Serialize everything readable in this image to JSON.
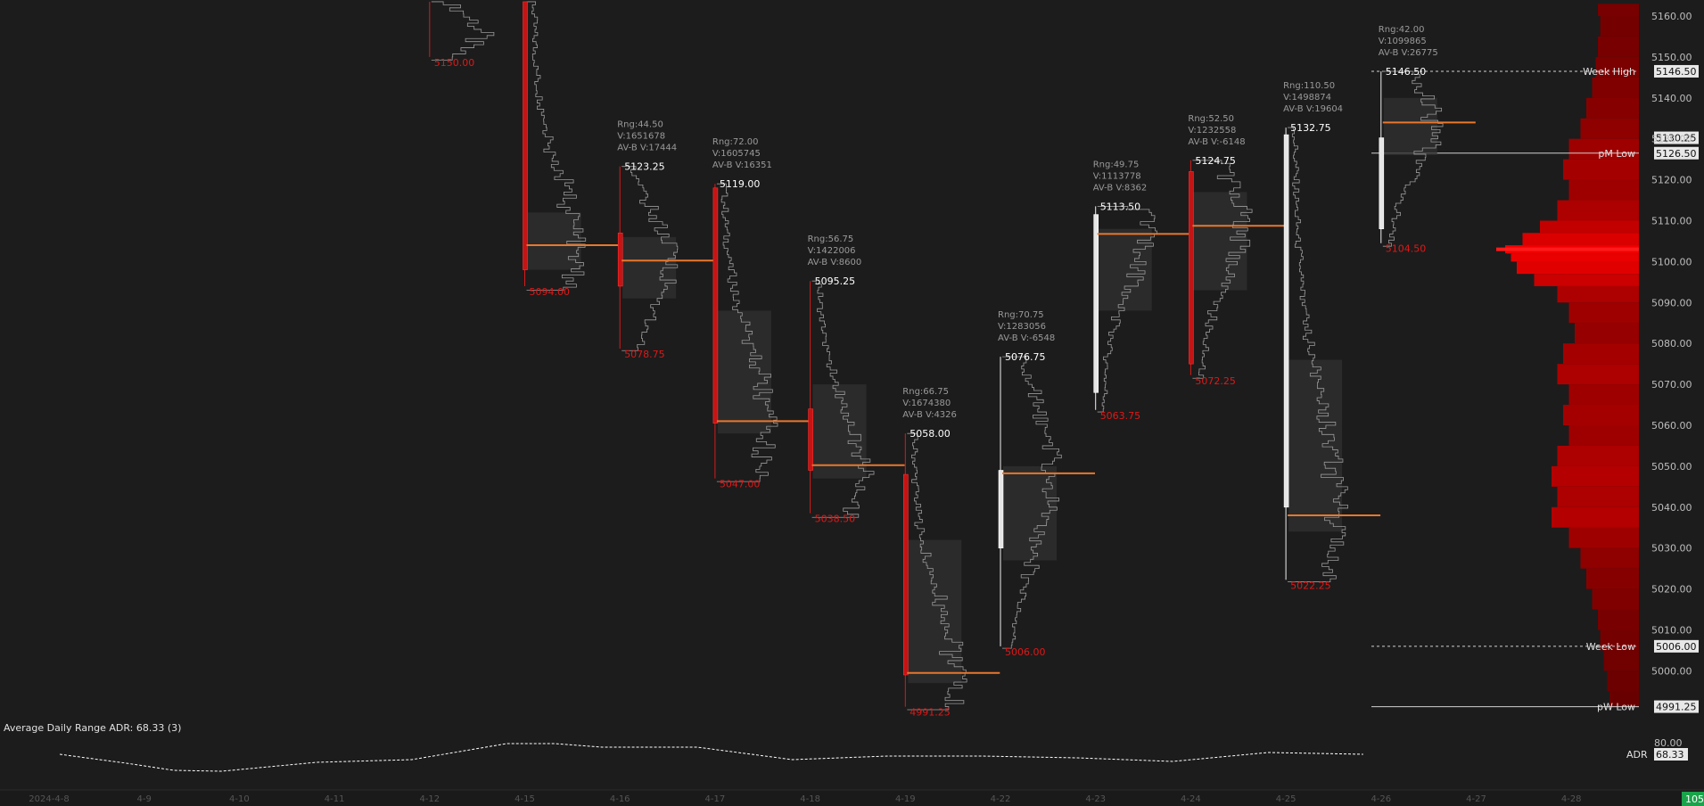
{
  "chart_data": {
    "type": "market-profile",
    "yaxis": {
      "ticks": [
        "5160.00",
        "5150.00",
        "5140.00",
        "5130.00",
        "5120.00",
        "5110.00",
        "5100.00",
        "5090.00",
        "5080.00",
        "5070.00",
        "5060.00",
        "5050.00",
        "5040.00",
        "5030.00",
        "5020.00",
        "5010.00",
        "5000.00"
      ],
      "tick_values": [
        5160,
        5150,
        5140,
        5130,
        5120,
        5110,
        5100,
        5090,
        5080,
        5070,
        5060,
        5050,
        5040,
        5030,
        5020,
        5010,
        5000
      ],
      "range": [
        4991.25,
        5163.5
      ]
    },
    "xaxis": {
      "ticks": [
        "2024-4-8",
        "4-9",
        "4-10",
        "4-11",
        "4-12",
        "4-15",
        "4-16",
        "4-17",
        "4-18",
        "4-19",
        "4-22",
        "4-23",
        "4-24",
        "4-25",
        "4-26",
        "4-27",
        "4-28"
      ]
    },
    "sessions": [
      {
        "date": "4-12",
        "high": null,
        "low": 5150.0,
        "high_label": "",
        "low_label": "5150.00",
        "stats": [],
        "open": null,
        "close": null,
        "poc": null,
        "va": null,
        "color": "red",
        "partial": true
      },
      {
        "date": "4-15",
        "high": null,
        "low": 5094.0,
        "high_label": "",
        "low_label": "5094.00",
        "stats": [],
        "open": 5163.5,
        "close": 5098.0,
        "poc": 5104.0,
        "va": [
          5098,
          5112
        ],
        "color": "red",
        "partial": true
      },
      {
        "date": "4-16",
        "high": 5123.25,
        "low": 5078.75,
        "high_label": "5123.25",
        "low_label": "5078.75",
        "stats": [
          "Rng:44.50",
          "V:1651678",
          "AV-B V:17444"
        ],
        "open": 5107.0,
        "close": 5094.0,
        "poc": 5100.25,
        "va": [
          5091,
          5106
        ],
        "color": "red"
      },
      {
        "date": "4-17",
        "high": 5119.0,
        "low": 5047.0,
        "high_label": "5119.00",
        "low_label": "5047.00",
        "stats": [
          "Rng:72.00",
          "V:1605745",
          "AV-B V:16351"
        ],
        "open": 5118.0,
        "close": 5060.5,
        "poc": 5061.0,
        "va": [
          5058,
          5088
        ],
        "color": "red"
      },
      {
        "date": "4-18",
        "high": 5095.25,
        "low": 5038.5,
        "high_label": "5095.25",
        "low_label": "5038.50",
        "stats": [
          "Rng:56.75",
          "V:1422006",
          "AV-B V:8600"
        ],
        "open": 5064.0,
        "close": 5049.0,
        "poc": 5050.25,
        "va": [
          5047,
          5070
        ],
        "color": "red"
      },
      {
        "date": "4-19",
        "high": 5058.0,
        "low": 4991.25,
        "high_label": "5058.00",
        "low_label": "4991.25",
        "stats": [
          "Rng:66.75",
          "V:1674380",
          "AV-B V:4326"
        ],
        "open": 5048.0,
        "close": 4999.0,
        "poc": 4999.5,
        "va": [
          4997,
          5032
        ],
        "color": "red"
      },
      {
        "date": "4-22",
        "high": 5076.75,
        "low": 5006.0,
        "high_label": "5076.75",
        "low_label": "5006.00",
        "stats": [
          "Rng:70.75",
          "V:1283056",
          "AV-B V:-6548"
        ],
        "open": 5030.0,
        "close": 5049.0,
        "poc": 5048.25,
        "va": [
          5027,
          5050
        ],
        "color": "white"
      },
      {
        "date": "4-23",
        "high": 5113.5,
        "low": 5063.75,
        "high_label": "5113.50",
        "low_label": "5063.75",
        "stats": [
          "Rng:49.75",
          "V:1113778",
          "AV-B V:8362"
        ],
        "open": 5068.0,
        "close": 5111.5,
        "poc": 5106.75,
        "va": [
          5088,
          5108
        ],
        "color": "white"
      },
      {
        "date": "4-24",
        "high": 5124.75,
        "low": 5072.25,
        "high_label": "5124.75",
        "low_label": "5072.25",
        "stats": [
          "Rng:52.50",
          "V:1232558",
          "AV-B V:-6148"
        ],
        "open": 5122.0,
        "close": 5075.0,
        "poc": 5108.75,
        "va": [
          5093,
          5117
        ],
        "color": "red"
      },
      {
        "date": "4-25",
        "high": 5132.75,
        "low": 5022.25,
        "high_label": "5132.75",
        "low_label": "5022.25",
        "stats": [
          "Rng:110.50",
          "V:1498874",
          "AV-B V:19604"
        ],
        "open": 5040.0,
        "close": 5131.0,
        "poc": 5038.0,
        "va": [
          5034,
          5076
        ],
        "color": "white"
      },
      {
        "date": "4-26",
        "high": 5146.5,
        "low": 5104.5,
        "high_label": "5146.50",
        "low_label": "5104.50",
        "stats": [
          "Rng:42.00",
          "V:1099865",
          "AV-B V:26775"
        ],
        "open": 5108.0,
        "close": 5130.25,
        "poc": 5134.0,
        "va": [
          5126,
          5140
        ],
        "color": "white"
      }
    ],
    "reference_lines": [
      {
        "name": "Week High",
        "value": 5146.5,
        "value_label": "5146.50",
        "style": "dashed"
      },
      {
        "name": "pM Low",
        "value": 5126.5,
        "value_label": "5126.50",
        "style": "solid"
      },
      {
        "name": "Week Low",
        "value": 5006.0,
        "value_label": "5006.00",
        "style": "dashed"
      },
      {
        "name": "pW Low",
        "value": 4991.25,
        "value_label": "4991.25",
        "style": "solid"
      }
    ],
    "last_price": {
      "value": 5130.25,
      "label": "5130.25"
    },
    "adr_panel": {
      "title": "Average Daily Range  ADR: 68.33   (3)",
      "axis_tick": "80.00",
      "label": "ADR",
      "value": 68.33,
      "value_label": "68.33",
      "range": [
        40,
        85
      ],
      "series": [
        {
          "x": 0.3,
          "y": 62.0
        },
        {
          "x": 1.0,
          "y": 57.0
        },
        {
          "x": 1.5,
          "y": 53.0
        },
        {
          "x": 2.0,
          "y": 52.5
        },
        {
          "x": 2.5,
          "y": 55.0
        },
        {
          "x": 3.0,
          "y": 57.5
        },
        {
          "x": 4.0,
          "y": 59.0
        },
        {
          "x": 5.0,
          "y": 68.0
        },
        {
          "x": 5.5,
          "y": 68.0
        },
        {
          "x": 6.0,
          "y": 66.0
        },
        {
          "x": 7.0,
          "y": 66.0
        },
        {
          "x": 8.0,
          "y": 59.0
        },
        {
          "x": 9.0,
          "y": 61.0
        },
        {
          "x": 10.0,
          "y": 61.0
        },
        {
          "x": 11.0,
          "y": 60.0
        },
        {
          "x": 12.0,
          "y": 58.0
        },
        {
          "x": 13.0,
          "y": 63.0
        },
        {
          "x": 14.0,
          "y": 62.0
        }
      ]
    },
    "composite_profile": {
      "peak_price": 5103.0,
      "bins": [
        5163,
        5160,
        5155,
        5150,
        5145,
        5140,
        5135,
        5130,
        5125,
        5120,
        5115,
        5110,
        5107,
        5104,
        5102,
        5100,
        5097,
        5094,
        5090,
        5085,
        5080,
        5075,
        5070,
        5065,
        5060,
        5055,
        5050,
        5045,
        5040,
        5035,
        5030,
        5025,
        5020,
        5015,
        5010,
        5005,
        5000,
        4995
      ],
      "volumes": [
        0.2,
        0.18,
        0.2,
        0.22,
        0.25,
        0.3,
        0.35,
        0.45,
        0.5,
        0.45,
        0.55,
        0.7,
        0.85,
        1.0,
        0.95,
        0.9,
        0.75,
        0.55,
        0.45,
        0.4,
        0.5,
        0.55,
        0.45,
        0.5,
        0.45,
        0.55,
        0.6,
        0.55,
        0.6,
        0.45,
        0.35,
        0.3,
        0.25,
        0.2,
        0.18,
        0.15,
        0.12,
        0.1
      ]
    },
    "corner_badge": "105"
  }
}
